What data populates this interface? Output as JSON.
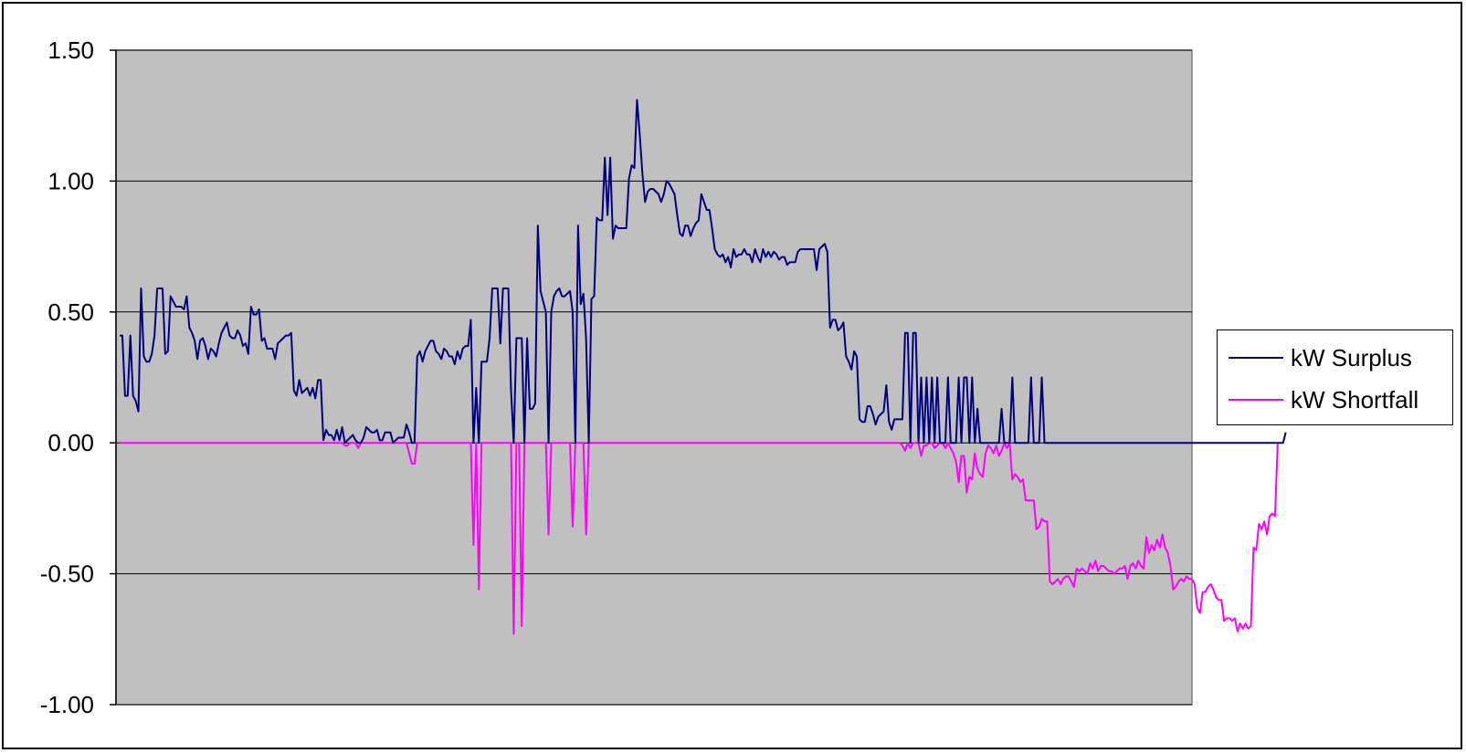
{
  "chart_data": {
    "type": "line",
    "title": "",
    "xlabel": "",
    "ylabel": "",
    "ylim": [
      -1.0,
      1.5
    ],
    "yticks": [
      "1.50",
      "1.00",
      "0.50",
      "0.00",
      "-0.50",
      "-1.00"
    ],
    "ytick_values": [
      1.5,
      1.0,
      0.5,
      0.0,
      -0.5,
      -1.0
    ],
    "grid": "horizontal",
    "plot_background": "#c0c0c0",
    "legend_position": "right",
    "n_points": 400,
    "series": [
      {
        "name": "kW Surplus",
        "color": "#000080",
        "values": [
          0.41,
          0.41,
          0.18,
          0.18,
          0.41,
          0.18,
          0.16,
          0.12,
          0.59,
          0.33,
          0.31,
          0.31,
          0.34,
          0.41,
          0.59,
          0.59,
          0.59,
          0.34,
          0.35,
          0.56,
          0.54,
          0.52,
          0.52,
          0.52,
          0.51,
          0.56,
          0.44,
          0.42,
          0.39,
          0.32,
          0.39,
          0.4,
          0.37,
          0.32,
          0.36,
          0.35,
          0.33,
          0.38,
          0.42,
          0.44,
          0.46,
          0.41,
          0.4,
          0.4,
          0.43,
          0.41,
          0.37,
          0.38,
          0.34,
          0.52,
          0.49,
          0.49,
          0.51,
          0.39,
          0.4,
          0.36,
          0.36,
          0.36,
          0.32,
          0.38,
          0.39,
          0.4,
          0.41,
          0.41,
          0.42,
          0.2,
          0.18,
          0.24,
          0.19,
          0.2,
          0.21,
          0.18,
          0.21,
          0.17,
          0.24,
          0.24,
          0.01,
          0.05,
          0.03,
          0.03,
          0.01,
          0.05,
          0.01,
          0.06,
          0.0,
          0.01,
          0.02,
          0.03,
          0.01,
          0.0,
          0.0,
          0.02,
          0.06,
          0.05,
          0.04,
          0.04,
          0.05,
          0.01,
          0.01,
          0.04,
          0.04,
          0.04,
          0.0,
          0.01,
          0.02,
          0.02,
          0.02,
          0.07,
          0.04,
          0.0,
          0.0,
          0.33,
          0.35,
          0.31,
          0.35,
          0.37,
          0.39,
          0.39,
          0.35,
          0.34,
          0.32,
          0.36,
          0.35,
          0.33,
          0.33,
          0.3,
          0.35,
          0.32,
          0.36,
          0.37,
          0.37,
          0.47,
          0.0,
          0.21,
          0.0,
          0.31,
          0.31,
          0.31,
          0.4,
          0.59,
          0.59,
          0.59,
          0.38,
          0.59,
          0.59,
          0.59,
          0.2,
          0.0,
          0.4,
          0.4,
          0.4,
          0.0,
          0.4,
          0.13,
          0.13,
          0.15,
          0.83,
          0.58,
          0.54,
          0.5,
          0.0,
          0.5,
          0.56,
          0.58,
          0.59,
          0.56,
          0.56,
          0.57,
          0.58,
          0.5,
          0.0,
          0.83,
          0.53,
          0.57,
          0.4,
          0.0,
          0.55,
          0.56,
          0.86,
          0.85,
          0.85,
          1.09,
          0.87,
          1.09,
          0.78,
          0.83,
          0.82,
          0.82,
          0.82,
          0.82,
          1.01,
          1.06,
          1.05,
          1.31,
          1.18,
          1.03,
          0.92,
          0.96,
          0.97,
          0.97,
          0.96,
          0.95,
          0.92,
          0.95,
          1.0,
          0.99,
          0.97,
          0.95,
          0.87,
          0.8,
          0.79,
          0.83,
          0.83,
          0.79,
          0.82,
          0.84,
          0.85,
          0.95,
          0.92,
          0.89,
          0.89,
          0.82,
          0.74,
          0.72,
          0.71,
          0.72,
          0.69,
          0.71,
          0.67,
          0.74,
          0.71,
          0.72,
          0.72,
          0.74,
          0.72,
          0.72,
          0.69,
          0.74,
          0.71,
          0.69,
          0.74,
          0.71,
          0.73,
          0.71,
          0.73,
          0.72,
          0.7,
          0.71,
          0.71,
          0.68,
          0.69,
          0.69,
          0.69,
          0.73,
          0.74,
          0.74,
          0.74,
          0.74,
          0.74,
          0.74,
          0.66,
          0.74,
          0.75,
          0.76,
          0.73,
          0.44,
          0.47,
          0.47,
          0.43,
          0.44,
          0.46,
          0.33,
          0.31,
          0.28,
          0.35,
          0.33,
          0.09,
          0.08,
          0.08,
          0.14,
          0.14,
          0.11,
          0.07,
          0.1,
          0.11,
          0.12,
          0.22,
          0.08,
          0.05,
          0.09,
          0.09,
          0.09,
          0.09,
          0.42,
          0.42,
          0.0,
          0.42,
          0.42,
          0.0,
          0.25,
          0.0,
          0.25,
          0.0,
          0.25,
          0.0,
          0.25,
          0.0,
          0.0,
          0.0,
          0.25,
          0.0,
          0.0,
          0.0,
          0.25,
          0.0,
          0.25,
          0.25,
          0.0,
          0.25,
          0.0,
          0.13,
          0.0,
          0.0,
          0.0,
          0.0,
          0.0,
          0.0,
          0.0,
          0.0,
          0.13,
          0.0,
          0.0,
          0.0,
          0.25,
          0.0,
          0.0,
          0.0,
          0.0,
          0.0,
          0.0,
          0.25,
          0.0,
          0.0,
          0.0,
          0.25,
          0.0,
          0.0,
          0.0,
          0.0,
          0.0,
          0.0,
          0.0,
          0.0,
          0.0,
          0.0,
          0.0,
          0.0,
          0.0,
          0.0,
          0.0,
          0.0,
          0.0,
          0.0,
          0.0,
          0.0,
          0.0,
          0.0,
          0.0,
          0.0,
          0.0,
          0.0,
          0.0,
          0.0,
          0.0,
          0.0,
          0.0,
          0.0,
          0.0,
          0.0,
          0.0,
          0.0,
          0.0,
          0.0,
          0.0,
          0.0,
          0.0,
          0.0,
          0.0,
          0.0,
          0.0,
          0.0,
          0.0,
          0.0,
          0.0,
          0.0,
          0.0,
          0.0,
          0.0,
          0.0,
          0.0,
          0.0,
          0.0,
          0.0,
          0.0,
          0.0,
          0.0,
          0.0,
          0.0,
          0.0,
          0.0,
          0.0,
          0.0,
          0.0,
          0.0,
          0.0,
          0.0,
          0.0,
          0.0,
          0.0,
          0.0,
          0.0,
          0.0,
          0.0,
          0.0,
          0.0,
          0.0,
          0.0,
          0.0,
          0.0,
          0.0,
          0.0,
          0.0,
          0.0,
          0.0,
          0.0,
          0.04
        ]
      },
      {
        "name": "kW Shortfall",
        "color": "#ff00ff",
        "values": [
          0.0,
          0.0,
          0.0,
          0.0,
          0.0,
          0.0,
          0.0,
          0.0,
          0.0,
          0.0,
          0.0,
          0.0,
          0.0,
          0.0,
          0.0,
          0.0,
          0.0,
          0.0,
          0.0,
          0.0,
          0.0,
          0.0,
          0.0,
          0.0,
          0.0,
          0.0,
          0.0,
          0.0,
          0.0,
          0.0,
          0.0,
          0.0,
          0.0,
          0.0,
          0.0,
          0.0,
          0.0,
          0.0,
          0.0,
          0.0,
          0.0,
          0.0,
          0.0,
          0.0,
          0.0,
          0.0,
          0.0,
          0.0,
          0.0,
          0.0,
          0.0,
          0.0,
          0.0,
          0.0,
          0.0,
          0.0,
          0.0,
          0.0,
          0.0,
          0.0,
          0.0,
          0.0,
          0.0,
          0.0,
          0.0,
          0.0,
          0.0,
          0.0,
          0.0,
          0.0,
          0.0,
          0.0,
          0.0,
          0.0,
          0.0,
          0.0,
          0.0,
          0.0,
          0.0,
          0.0,
          0.0,
          0.0,
          0.0,
          0.0,
          -0.01,
          -0.01,
          0.0,
          0.0,
          0.0,
          -0.02,
          0.0,
          0.0,
          0.0,
          0.0,
          0.0,
          0.0,
          0.0,
          0.0,
          0.0,
          0.0,
          0.0,
          0.0,
          0.0,
          0.0,
          0.0,
          0.0,
          0.0,
          0.0,
          -0.04,
          -0.08,
          -0.08,
          0.0,
          0.0,
          0.0,
          0.0,
          0.0,
          0.0,
          0.0,
          0.0,
          0.0,
          0.0,
          0.0,
          0.0,
          0.0,
          0.0,
          0.0,
          0.0,
          0.0,
          0.0,
          0.0,
          0.0,
          0.0,
          -0.39,
          0.0,
          -0.56,
          0.0,
          0.0,
          0.0,
          0.0,
          0.0,
          0.0,
          0.0,
          0.0,
          0.0,
          0.0,
          0.0,
          0.0,
          -0.73,
          0.0,
          0.0,
          -0.7,
          0.0,
          0.0,
          0.0,
          0.0,
          0.0,
          0.0,
          0.0,
          0.0,
          0.0,
          -0.35,
          0.0,
          0.0,
          0.0,
          0.0,
          0.0,
          0.0,
          0.0,
          0.0,
          -0.32,
          0.0,
          0.0,
          0.0,
          0.0,
          -0.35,
          0.0,
          0.0,
          0.0,
          0.0,
          0.0,
          0.0,
          0.0,
          0.0,
          0.0,
          0.0,
          0.0,
          0.0,
          0.0,
          0.0,
          0.0,
          0.0,
          0.0,
          0.0,
          0.0,
          0.0,
          0.0,
          0.0,
          0.0,
          0.0,
          0.0,
          0.0,
          0.0,
          0.0,
          0.0,
          0.0,
          0.0,
          0.0,
          0.0,
          0.0,
          0.0,
          0.0,
          0.0,
          0.0,
          0.0,
          0.0,
          0.0,
          0.0,
          0.0,
          0.0,
          0.0,
          0.0,
          0.0,
          0.0,
          0.0,
          0.0,
          0.0,
          0.0,
          0.0,
          0.0,
          0.0,
          0.0,
          0.0,
          0.0,
          0.0,
          0.0,
          0.0,
          0.0,
          0.0,
          0.0,
          0.0,
          0.0,
          0.0,
          0.0,
          0.0,
          0.0,
          0.0,
          0.0,
          0.0,
          0.0,
          0.0,
          0.0,
          0.0,
          0.0,
          0.0,
          0.0,
          0.0,
          0.0,
          0.0,
          0.0,
          0.0,
          0.0,
          0.0,
          0.0,
          0.0,
          0.0,
          0.0,
          0.0,
          0.0,
          0.0,
          0.0,
          0.0,
          0.0,
          0.0,
          0.0,
          0.0,
          0.0,
          0.0,
          0.0,
          0.0,
          0.0,
          0.0,
          0.0,
          0.0,
          0.0,
          0.0,
          0.0,
          0.0,
          0.0,
          0.0,
          0.0,
          0.0,
          0.0,
          -0.01,
          -0.03,
          0.0,
          -0.02,
          0.0,
          0.0,
          0.0,
          -0.05,
          -0.01,
          -0.01,
          0.0,
          0.0,
          -0.02,
          -0.01,
          0.0,
          0.0,
          -0.02,
          0.0,
          -0.02,
          -0.04,
          -0.07,
          -0.15,
          -0.05,
          -0.05,
          -0.19,
          -0.13,
          -0.14,
          -0.04,
          -0.1,
          -0.12,
          -0.13,
          -0.04,
          -0.01,
          -0.02,
          -0.04,
          -0.01,
          -0.05,
          -0.03,
          0.0,
          -0.02,
          0.0,
          -0.14,
          -0.12,
          -0.13,
          -0.15,
          -0.14,
          -0.22,
          -0.22,
          -0.22,
          -0.22,
          -0.33,
          -0.32,
          -0.29,
          -0.3,
          -0.3,
          -0.53,
          -0.54,
          -0.53,
          -0.52,
          -0.54,
          -0.52,
          -0.51,
          -0.51,
          -0.53,
          -0.55,
          -0.48,
          -0.49,
          -0.48,
          -0.49,
          -0.5,
          -0.46,
          -0.48,
          -0.45,
          -0.49,
          -0.47,
          -0.47,
          -0.48,
          -0.49,
          -0.49,
          -0.5,
          -0.49,
          -0.48,
          -0.48,
          -0.47,
          -0.52,
          -0.47,
          -0.46,
          -0.48,
          -0.45,
          -0.47,
          -0.48,
          -0.36,
          -0.42,
          -0.39,
          -0.41,
          -0.37,
          -0.4,
          -0.35,
          -0.4,
          -0.42,
          -0.47,
          -0.56,
          -0.55,
          -0.53,
          -0.52,
          -0.53,
          -0.51,
          -0.52,
          -0.52,
          -0.54,
          -0.63,
          -0.65,
          -0.57,
          -0.57,
          -0.55,
          -0.54,
          -0.56,
          -0.59,
          -0.6,
          -0.6,
          -0.68,
          -0.67,
          -0.67,
          -0.68,
          -0.67,
          -0.72,
          -0.69,
          -0.71,
          -0.69,
          -0.71,
          -0.7,
          -0.4,
          -0.41,
          -0.31,
          -0.33,
          -0.3,
          -0.35,
          -0.28,
          -0.27,
          -0.28,
          0.0
        ]
      }
    ]
  }
}
